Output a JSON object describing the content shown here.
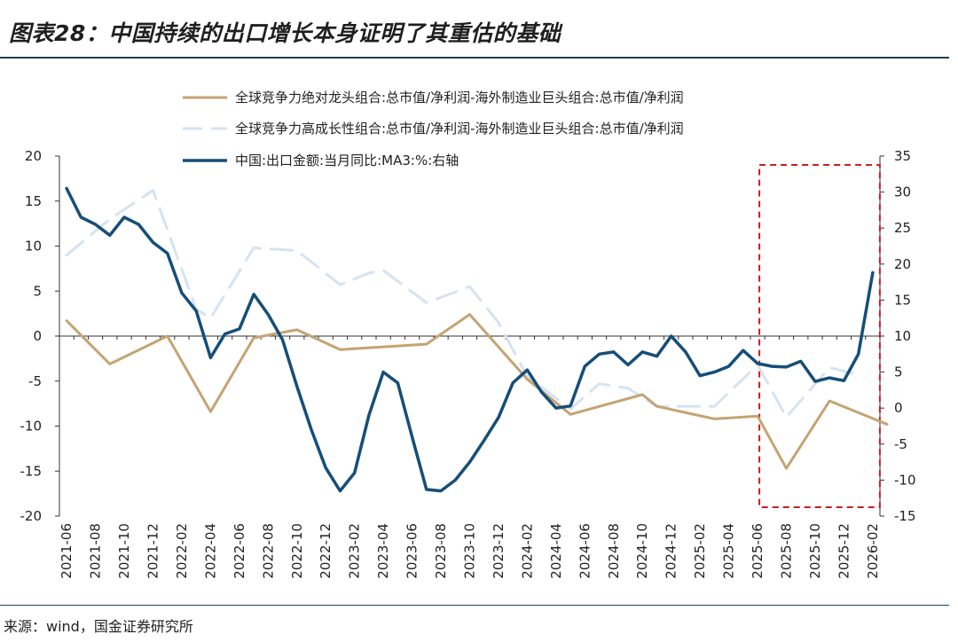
{
  "title": "图表28：中国持续的出口增长本身证明了其重估的基础",
  "source": "来源：wind，国金证券研究所",
  "chart_data": {
    "type": "line",
    "categories": [
      "2021-06",
      "2021-07",
      "2021-08",
      "2021-09",
      "2021-10",
      "2021-11",
      "2021-12",
      "2022-01",
      "2022-02",
      "2022-03",
      "2022-04",
      "2022-05",
      "2022-06",
      "2022-07",
      "2022-08",
      "2022-09",
      "2022-10",
      "2022-11",
      "2022-12",
      "2023-01",
      "2023-02",
      "2023-03",
      "2023-04",
      "2023-05",
      "2023-06",
      "2023-07",
      "2023-08",
      "2023-09",
      "2023-10",
      "2023-11",
      "2023-12",
      "2024-01",
      "2024-02",
      "2024-03",
      "2024-04",
      "2024-05",
      "2024-06",
      "2024-07",
      "2024-08",
      "2024-09",
      "2024-10",
      "2024-11",
      "2024-12",
      "2025-01",
      "2025-02",
      "2025-03",
      "2025-04",
      "2025-05",
      "2025-06",
      "2025-07",
      "2025-08",
      "2025-09",
      "2025-10",
      "2025-11",
      "2025-12",
      "2026-01",
      "2026-02"
    ],
    "x_tick_labels": [
      "2021-06",
      "2021-08",
      "2021-10",
      "2021-12",
      "2022-02",
      "2022-04",
      "2022-06",
      "2022-08",
      "2022-10",
      "2022-12",
      "2023-02",
      "2023-04",
      "2023-06",
      "2023-08",
      "2023-10",
      "2023-12",
      "2024-02",
      "2024-04",
      "2024-06",
      "2024-08",
      "2024-10",
      "2024-12",
      "2025-02",
      "2025-04",
      "2025-06",
      "2025-08",
      "2025-10",
      "2025-12",
      "2026-02"
    ],
    "y_left": {
      "min": -20,
      "max": 20,
      "ticks": [
        20,
        15,
        10,
        5,
        0,
        -5,
        -10,
        -15,
        -20
      ]
    },
    "y_right": {
      "min": -15,
      "max": 35,
      "ticks": [
        35,
        30,
        25,
        20,
        15,
        10,
        5,
        0,
        -5,
        -10,
        -15
      ]
    },
    "series": [
      {
        "name": "全球竞争力绝对龙头组合:总市值/净利润-海外制造业巨头组合:总市值/净利润",
        "axis": "left",
        "color": "#c4a473",
        "style": "solid",
        "points": [
          [
            0,
            1.7
          ],
          [
            3,
            -3.1
          ],
          [
            7,
            0
          ],
          [
            10,
            -8.4
          ],
          [
            13,
            -0.2
          ],
          [
            16,
            0.7
          ],
          [
            19,
            -1.5
          ],
          [
            25,
            -0.9
          ],
          [
            28,
            2.4
          ],
          [
            32,
            -4.8
          ],
          [
            35,
            -8.7
          ],
          [
            40,
            -6.5
          ],
          [
            41,
            -7.8
          ],
          [
            45,
            -9.2
          ],
          [
            48,
            -8.9
          ],
          [
            50,
            -14.7
          ],
          [
            53,
            -7.2
          ],
          [
            57,
            -9.8
          ]
        ]
      },
      {
        "name": "全球竞争力高成长性组合:总市值/净利润-海外制造业巨头组合:总市值/净利润",
        "axis": "left",
        "color": "#d6e3f0",
        "style": "dashed",
        "points": [
          [
            0,
            9
          ],
          [
            3,
            13
          ],
          [
            6,
            16.2
          ],
          [
            9,
            3
          ],
          [
            10,
            2
          ],
          [
            13,
            9.8
          ],
          [
            16,
            9.5
          ],
          [
            19,
            5.7
          ],
          [
            21,
            7
          ],
          [
            22,
            7.3
          ],
          [
            25,
            3.7
          ],
          [
            28,
            5.5
          ],
          [
            30,
            1.5
          ],
          [
            32,
            -4.5
          ],
          [
            35,
            -8.1
          ],
          [
            37,
            -5.3
          ],
          [
            39,
            -5.8
          ],
          [
            41,
            -7.8
          ],
          [
            45,
            -7.8
          ],
          [
            48,
            -3.2
          ],
          [
            50,
            -9
          ],
          [
            53,
            -3.5
          ],
          [
            55,
            -4.3
          ]
        ]
      },
      {
        "name": "中国:出口金额:当月同比:MA3:%:右轴",
        "axis": "right",
        "color": "#164e78",
        "style": "solid",
        "points": [
          [
            0,
            30.5
          ],
          [
            1,
            26.5
          ],
          [
            2,
            25.5
          ],
          [
            3,
            24
          ],
          [
            4,
            26.5
          ],
          [
            5,
            25.5
          ],
          [
            6,
            23
          ],
          [
            7,
            21.5
          ],
          [
            8,
            16
          ],
          [
            9,
            13.5
          ],
          [
            10,
            7
          ],
          [
            11,
            10.3
          ],
          [
            12,
            11
          ],
          [
            13,
            15.8
          ],
          [
            14,
            13
          ],
          [
            15,
            9.5
          ],
          [
            16,
            3
          ],
          [
            17,
            -3
          ],
          [
            18,
            -8.3
          ],
          [
            19,
            -11.5
          ],
          [
            20,
            -9
          ],
          [
            21,
            -1
          ],
          [
            22,
            5
          ],
          [
            23,
            3.5
          ],
          [
            24,
            -4
          ],
          [
            25,
            -11.3
          ],
          [
            26,
            -11.5
          ],
          [
            27,
            -10
          ],
          [
            28,
            -7.5
          ],
          [
            29,
            -4.5
          ],
          [
            30,
            -1.3
          ],
          [
            31,
            3.5
          ],
          [
            32,
            5.3
          ],
          [
            33,
            2.2
          ],
          [
            34,
            0
          ],
          [
            35,
            0.3
          ],
          [
            36,
            5.8
          ],
          [
            37,
            7.5
          ],
          [
            38,
            7.8
          ],
          [
            39,
            6
          ],
          [
            40,
            7.8
          ],
          [
            41,
            7.2
          ],
          [
            42,
            10
          ],
          [
            43,
            7.8
          ],
          [
            44,
            4.5
          ],
          [
            45,
            5
          ],
          [
            46,
            5.8
          ],
          [
            47,
            8
          ],
          [
            48,
            6.2
          ],
          [
            49,
            5.8
          ],
          [
            50,
            5.7
          ],
          [
            51,
            6.5
          ],
          [
            52,
            3.7
          ],
          [
            53,
            4.2
          ],
          [
            54,
            3.8
          ],
          [
            55,
            7.5
          ],
          [
            56,
            18.8
          ]
        ]
      }
    ],
    "highlight_box": {
      "from": "2025-06",
      "to": "2026-02",
      "color": "#cc1f1f",
      "style": "dashed"
    },
    "legend_position": "top-center"
  }
}
